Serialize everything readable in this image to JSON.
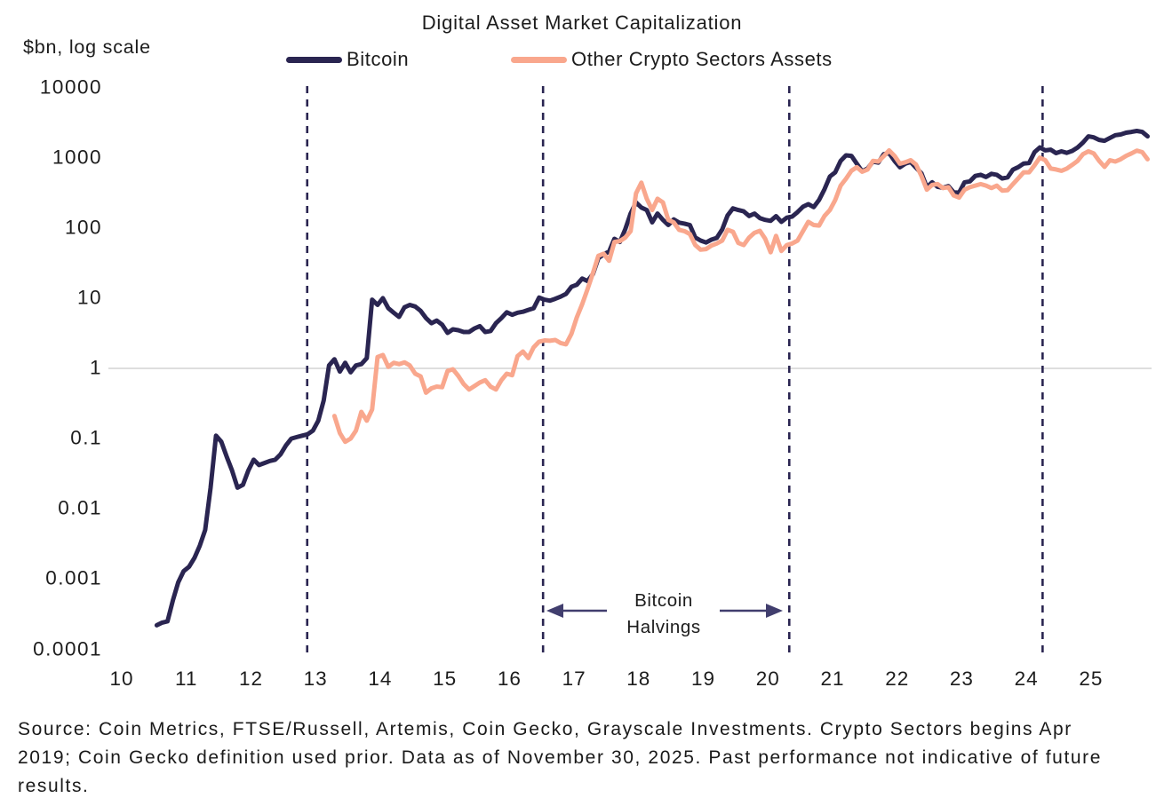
{
  "header": {
    "title": "Digital Asset Market Capitalization",
    "y_axis_unit_label": "$bn, log scale"
  },
  "legend": [
    {
      "label": "Bitcoin",
      "color": "#2a2551"
    },
    {
      "label": "Other Crypto Sectors Assets",
      "color": "#f9a78d"
    }
  ],
  "annotation": {
    "line1": "Bitcoin",
    "line2": "Halvings"
  },
  "source_note": "Source: Coin Metrics, FTSE/Russell, Artemis, Coin Gecko, Grayscale Investments. Crypto Sectors begins Apr 2019; Coin Gecko definition used prior. Data as of November 30, 2025. Past performance not indicative of future results.",
  "chart_data": {
    "type": "line",
    "title": "Digital Asset Market Capitalization",
    "ylabel": "$bn, log scale",
    "y_scale": "log",
    "ylim": [
      0.0001,
      10000
    ],
    "y_ticks": [
      "10000",
      "1000",
      "100",
      "10",
      "1",
      "0.1",
      "0.01",
      "0.001",
      "0.0001"
    ],
    "x_ticks": [
      "10",
      "11",
      "12",
      "13",
      "14",
      "15",
      "16",
      "17",
      "18",
      "19",
      "20",
      "21",
      "22",
      "23",
      "24",
      "25"
    ],
    "x_axis_years": [
      2010,
      2011,
      2012,
      2013,
      2014,
      2015,
      2016,
      2017,
      2018,
      2019,
      2020,
      2021,
      2022,
      2023,
      2024,
      2025
    ],
    "grid": "horizontal line at y = 1 only",
    "legend_position": "top",
    "halving_lines_years": [
      2012.87,
      2016.52,
      2020.33,
      2024.25
    ],
    "halving_line_color": "#2a2551",
    "gridline_color": "#c9c9c9",
    "arrow_color": "#413e6e",
    "series": [
      {
        "name": "Bitcoin",
        "color": "#2a2551",
        "start_year": 2010,
        "start_month": 7,
        "end_label": "Nov 2025",
        "monthly_values_bn": [
          0.00022,
          0.00024,
          0.00025,
          0.0005,
          0.0009,
          0.0013,
          0.0015,
          0.002,
          0.003,
          0.005,
          0.02,
          0.11,
          0.09,
          0.055,
          0.035,
          0.02,
          0.022,
          0.035,
          0.05,
          0.042,
          0.045,
          0.048,
          0.05,
          0.06,
          0.08,
          0.1,
          0.105,
          0.11,
          0.115,
          0.13,
          0.18,
          0.35,
          1.1,
          1.35,
          0.9,
          1.2,
          0.88,
          1.1,
          1.15,
          1.4,
          9.5,
          8.0,
          10.0,
          7.2,
          6.2,
          5.4,
          7.4,
          8.0,
          7.6,
          6.6,
          5.2,
          4.4,
          4.8,
          4.2,
          3.2,
          3.6,
          3.5,
          3.3,
          3.3,
          3.7,
          4.0,
          3.3,
          3.4,
          4.4,
          5.2,
          6.3,
          5.8,
          6.2,
          6.4,
          6.8,
          7.2,
          10.2,
          9.5,
          9.2,
          9.8,
          10.5,
          11.5,
          14.5,
          15.5,
          19,
          17.5,
          22,
          37,
          42,
          46,
          70,
          63,
          96,
          160,
          230,
          195,
          180,
          120,
          160,
          130,
          110,
          132,
          119,
          115,
          110,
          73,
          66,
          62,
          68,
          72,
          95,
          150,
          190,
          180,
          172,
          148,
          160,
          138,
          130,
          126,
          147,
          122,
          140,
          145,
          168,
          200,
          218,
          198,
          250,
          355,
          540,
          620,
          900,
          1080,
          1060,
          820,
          640,
          700,
          880,
          850,
          1120,
          1160,
          900,
          730,
          820,
          870,
          720,
          600,
          380,
          445,
          385,
          372,
          394,
          320,
          318,
          445,
          460,
          550,
          570,
          530,
          590,
          570,
          505,
          525,
          675,
          735,
          825,
          840,
          1200,
          1400,
          1270,
          1300,
          1160,
          1230,
          1170,
          1250,
          1400,
          1640,
          2010,
          1950,
          1790,
          1740,
          1910,
          2090,
          2140,
          2270,
          2330,
          2400,
          2330,
          2010
        ]
      },
      {
        "name": "Other Crypto Sectors Assets",
        "color": "#f9a78d",
        "start_year": 2013,
        "start_month": 4,
        "end_label": "Nov 2025",
        "monthly_values_bn": [
          0.21,
          0.12,
          0.09,
          0.1,
          0.13,
          0.24,
          0.18,
          0.26,
          1.45,
          1.55,
          1.05,
          1.2,
          1.15,
          1.22,
          1.1,
          0.84,
          0.77,
          0.45,
          0.52,
          0.55,
          0.54,
          0.92,
          0.97,
          0.78,
          0.6,
          0.5,
          0.56,
          0.63,
          0.68,
          0.55,
          0.5,
          0.68,
          0.84,
          0.8,
          1.5,
          1.74,
          1.4,
          2.0,
          2.4,
          2.5,
          2.47,
          2.54,
          2.3,
          2.2,
          3.1,
          5.3,
          8.2,
          13.4,
          22.7,
          40,
          43,
          34,
          63,
          65,
          73,
          90,
          310,
          440,
          260,
          180,
          260,
          230,
          130,
          120,
          94,
          90,
          82,
          57,
          49,
          50,
          56,
          60,
          66,
          94,
          88,
          61,
          57,
          73,
          85,
          91,
          70,
          45,
          77,
          47,
          57,
          60,
          66,
          90,
          122,
          110,
          108,
          148,
          180,
          250,
          400,
          500,
          650,
          730,
          630,
          680,
          900,
          880,
          1050,
          1270,
          1060,
          820,
          860,
          920,
          800,
          550,
          350,
          410,
          420,
          370,
          380,
          290,
          270,
          350,
          380,
          400,
          420,
          400,
          370,
          400,
          340,
          345,
          420,
          510,
          620,
          620,
          780,
          1000,
          920,
          700,
          680,
          650,
          700,
          790,
          900,
          1120,
          1230,
          1150,
          900,
          740,
          920,
          880,
          950,
          1060,
          1150,
          1260,
          1200,
          950
        ]
      }
    ]
  }
}
